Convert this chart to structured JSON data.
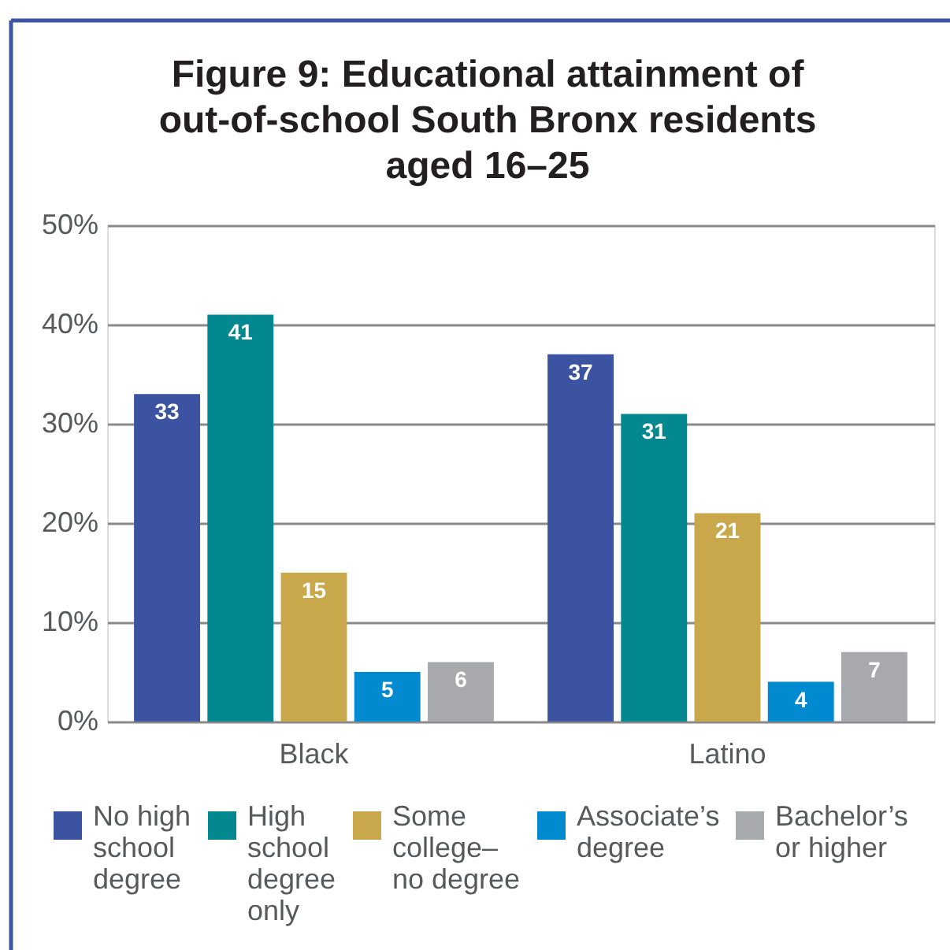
{
  "chart_data": {
    "type": "bar",
    "title": "Figure 9: Educational attainment of out-of-school South Bronx residents aged 16–25",
    "categories": [
      "Black",
      "Latino"
    ],
    "series": [
      {
        "name": "No high school degree",
        "color": "#3c53a2",
        "values": [
          33,
          37
        ]
      },
      {
        "name": "High school degree only",
        "color": "#03888f",
        "values": [
          41,
          31
        ]
      },
      {
        "name": "Some college–no degree",
        "color": "#c8a84a",
        "values": [
          15,
          21
        ]
      },
      {
        "name": "Associate’s degree",
        "color": "#028ad0",
        "values": [
          5,
          4
        ]
      },
      {
        "name": "Bachelor’s or higher",
        "color": "#a7a9ac",
        "values": [
          6,
          7
        ]
      }
    ],
    "ylim": [
      0,
      50
    ],
    "yticks": [
      {
        "value": 0,
        "label": "0%"
      },
      {
        "value": 10,
        "label": "10%"
      },
      {
        "value": 20,
        "label": "20%"
      },
      {
        "value": 30,
        "label": "30%"
      },
      {
        "value": 40,
        "label": "40%"
      },
      {
        "value": 50,
        "label": "50%"
      }
    ],
    "grid": "y",
    "legend": "bottom",
    "data_labels": true
  }
}
